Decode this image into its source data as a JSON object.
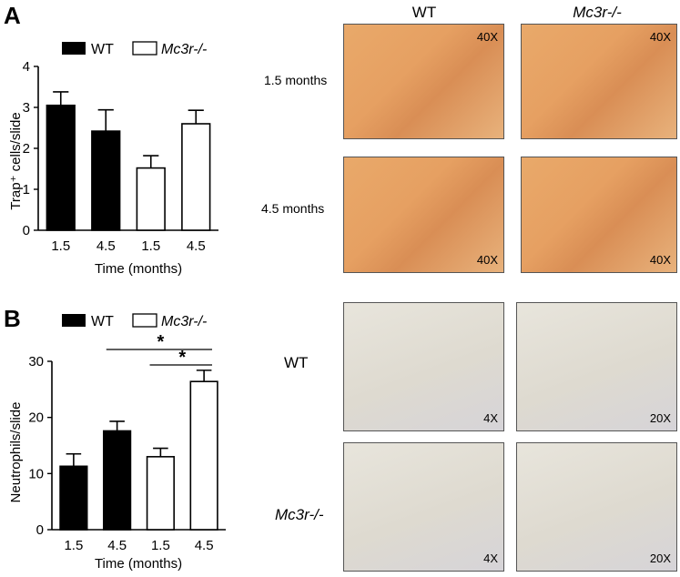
{
  "panelA": {
    "letter": "A",
    "legend": [
      "WT",
      "Mc3r-/-"
    ],
    "chart_data": {
      "type": "bar",
      "categories": [
        "1.5",
        "4.5",
        "1.5",
        "4.5"
      ],
      "series": [
        {
          "name": "WT",
          "values": [
            3.05,
            2.42,
            null,
            null
          ],
          "errors": [
            0.33,
            0.52,
            null,
            null
          ],
          "fill": "#000000"
        },
        {
          "name": "Mc3r-/-",
          "values": [
            null,
            null,
            1.52,
            2.6
          ],
          "errors": [
            null,
            null,
            0.3,
            0.33
          ],
          "fill": "#ffffff"
        }
      ],
      "ylabel": "Trap⁺ cells/slide",
      "xlabel": "Time (months)",
      "ylim": [
        0,
        4
      ],
      "yticks": [
        "0",
        "1",
        "2",
        "3",
        "4"
      ]
    },
    "micro": {
      "col_headers": [
        "WT",
        "Mc3r-/-"
      ],
      "row_labels": [
        "1.5 months",
        "4.5 months"
      ],
      "magnification": "40X"
    }
  },
  "panelB": {
    "letter": "B",
    "legend": [
      "WT",
      "Mc3r-/-"
    ],
    "chart_data": {
      "type": "bar",
      "categories": [
        "1.5",
        "4.5",
        "1.5",
        "4.5"
      ],
      "series": [
        {
          "name": "WT",
          "values": [
            11.3,
            17.6,
            null,
            null
          ],
          "errors": [
            2.2,
            1.7,
            null,
            null
          ],
          "fill": "#000000"
        },
        {
          "name": "Mc3r-/-",
          "values": [
            null,
            null,
            13.0,
            26.4
          ],
          "errors": [
            null,
            null,
            1.5,
            2.0
          ],
          "fill": "#ffffff"
        }
      ],
      "ylabel": "Neutrophils/slide",
      "xlabel": "Time (months)",
      "ylim": [
        0,
        30
      ],
      "yticks": [
        "0",
        "10",
        "20",
        "30"
      ],
      "annotations": [
        {
          "text": "*",
          "from_category": 1,
          "to_category": 3
        },
        {
          "text": "*",
          "from_category": 2,
          "to_category": 3
        }
      ]
    },
    "micro": {
      "row_labels": [
        "WT",
        "Mc3r-/-"
      ],
      "magnifications": [
        "4X",
        "20X"
      ]
    }
  }
}
